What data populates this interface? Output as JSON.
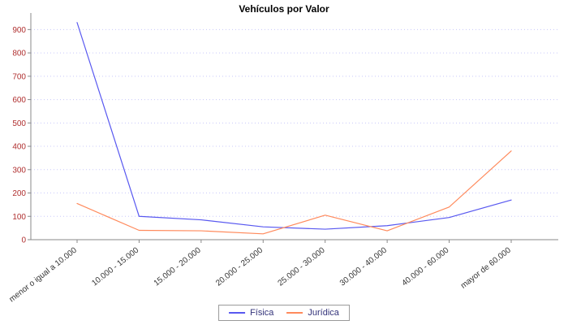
{
  "chart_data": {
    "type": "line",
    "title": "Vehículos por Valor",
    "categories": [
      "menor o igual a 10.000",
      "10.000 - 15.000",
      "15.000 - 20.000",
      "20.000 - 25.000",
      "25.000 - 30.000",
      "30.000 - 40.000",
      "40.000 - 60.000",
      "mayor de 60.000"
    ],
    "series": [
      {
        "name": "Física",
        "color": "#5858f0",
        "values": [
          930,
          100,
          85,
          55,
          45,
          60,
          95,
          170
        ]
      },
      {
        "name": "Jurídica",
        "color": "#ff8a5c",
        "values": [
          155,
          40,
          38,
          25,
          105,
          38,
          140,
          380
        ]
      }
    ],
    "ylim": [
      0,
      950
    ],
    "ytick_step": 100,
    "ytick_max": 900,
    "grid": "horizontal-dotted",
    "legend_position": "bottom"
  },
  "colors": {
    "tick_label": "#b03030",
    "category_label": "#333333",
    "gridline": "#c8c8fa",
    "axis": "#8a8a8a",
    "title": "#000000",
    "legend_text": "#33337a"
  }
}
